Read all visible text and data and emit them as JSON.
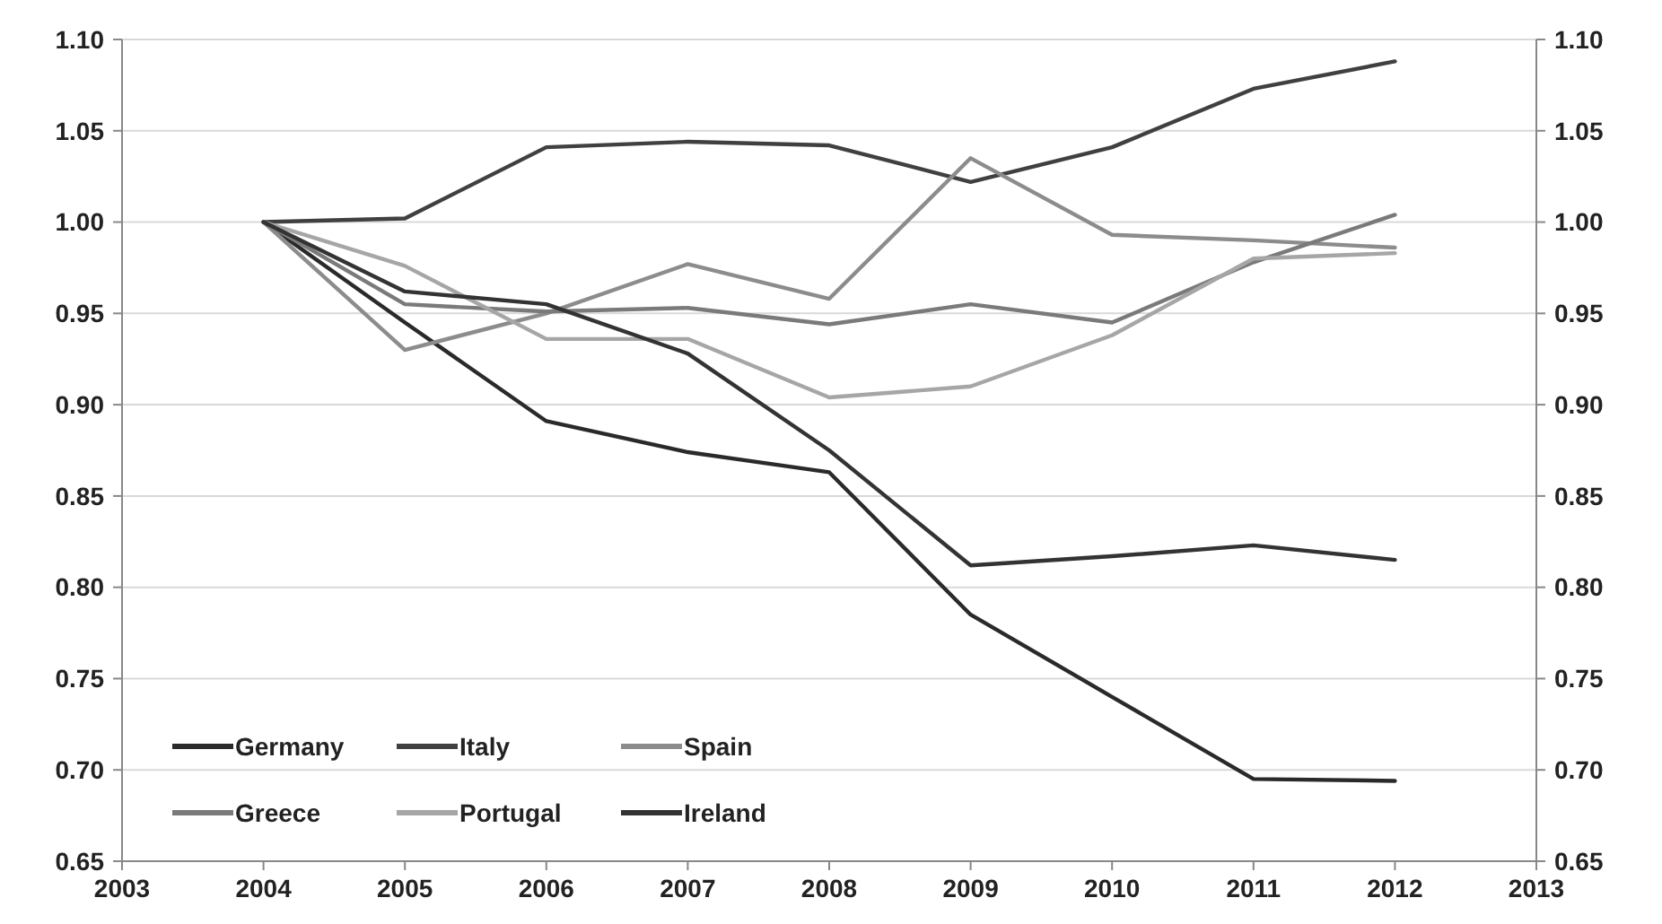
{
  "chart_data": {
    "type": "line",
    "x": [
      2004,
      2005,
      2006,
      2007,
      2008,
      2009,
      2010,
      2011,
      2012
    ],
    "series": [
      {
        "name": "Germany",
        "color": "#2a2a2a",
        "values": [
          1.0,
          0.945,
          0.891,
          0.874,
          0.863,
          0.785,
          0.74,
          0.695,
          0.694
        ]
      },
      {
        "name": "Italy",
        "color": "#404040",
        "values": [
          1.0,
          1.002,
          1.041,
          1.044,
          1.042,
          1.022,
          1.041,
          1.073,
          1.088
        ]
      },
      {
        "name": "Spain",
        "color": "#8c8c8c",
        "values": [
          1.0,
          0.93,
          0.95,
          0.977,
          0.958,
          1.035,
          0.993,
          0.99,
          0.986
        ]
      },
      {
        "name": "Greece",
        "color": "#7a7a7a",
        "values": [
          1.0,
          0.955,
          0.951,
          0.953,
          0.944,
          0.955,
          0.945,
          0.978,
          1.004
        ]
      },
      {
        "name": "Portugal",
        "color": "#a6a6a6",
        "values": [
          1.0,
          0.976,
          0.936,
          0.936,
          0.904,
          0.91,
          0.938,
          0.98,
          0.983
        ]
      },
      {
        "name": "Ireland",
        "color": "#333333",
        "values": [
          1.0,
          0.962,
          0.955,
          0.928,
          0.875,
          0.812,
          0.817,
          0.823,
          0.815
        ]
      }
    ],
    "xlim": [
      2003,
      2013
    ],
    "xticks": [
      2003,
      2004,
      2005,
      2006,
      2007,
      2008,
      2009,
      2010,
      2011,
      2012,
      2013
    ],
    "ylim": [
      0.65,
      1.1
    ],
    "yticks": [
      {
        "value": 0.65,
        "label": "0.65"
      },
      {
        "value": 0.7,
        "label": "0.70"
      },
      {
        "value": 0.75,
        "label": "0.75"
      },
      {
        "value": 0.8,
        "label": "0.80"
      },
      {
        "value": 0.85,
        "label": "0.85"
      },
      {
        "value": 0.9,
        "label": "0.90"
      },
      {
        "value": 0.95,
        "label": "0.95"
      },
      {
        "value": 1.0,
        "label": "1.00"
      },
      {
        "value": 1.05,
        "label": "1.05"
      },
      {
        "value": 1.1,
        "label": "1.10"
      }
    ],
    "y2lim": [
      0.65,
      1.1
    ],
    "y2ticks": [
      {
        "value": 0.65,
        "label": "0.65"
      },
      {
        "value": 0.7,
        "label": "0.70"
      },
      {
        "value": 0.75,
        "label": "0.75"
      },
      {
        "value": 0.8,
        "label": "0.80"
      },
      {
        "value": 0.85,
        "label": "0.85"
      },
      {
        "value": 0.9,
        "label": "0.90"
      },
      {
        "value": 0.95,
        "label": "0.95"
      },
      {
        "value": 1.0,
        "label": "1.00"
      },
      {
        "value": 1.05,
        "label": "1.05"
      },
      {
        "value": 1.1,
        "label": "1.10"
      }
    ],
    "grid": "y",
    "legend": "bottom left",
    "marker": "none",
    "line_style": "solid"
  }
}
